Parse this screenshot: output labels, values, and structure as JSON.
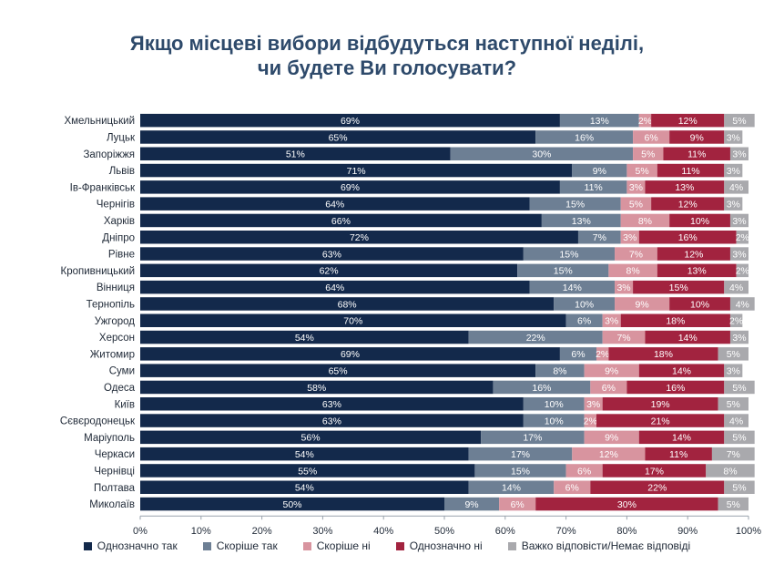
{
  "page": {
    "title_line1": "Якщо місцеві вибори відбудуться наступної неділі,",
    "title_line2": "чи будете Ви голосувати?"
  },
  "chart_data": {
    "type": "bar",
    "orientation": "horizontal",
    "stacked": true,
    "title": "Якщо місцеві вибори відбудуться наступної неділі, чи будете Ви голосувати?",
    "xlim": [
      0,
      100
    ],
    "x_ticks": [
      "0%",
      "10%",
      "20%",
      "30%",
      "40%",
      "50%",
      "60%",
      "70%",
      "80%",
      "90%",
      "100%"
    ],
    "legend_position": "bottom",
    "categories": [
      "Хмельницький",
      "Луцьк",
      "Запоріжжя",
      "Львів",
      "Ів-Франківськ",
      "Чернігів",
      "Харків",
      "Дніпро",
      "Рівне",
      "Кропивницький",
      "Вінниця",
      "Тернопіль",
      "Ужгород",
      "Херсон",
      "Житомир",
      "Суми",
      "Одеса",
      "Київ",
      "Сєвєродонецьк",
      "Маріуполь",
      "Черкаси",
      "Чернівці",
      "Полтава",
      "Миколаїв"
    ],
    "series": [
      {
        "name": "Однозначно так",
        "color": "#13294b",
        "values": [
          69,
          65,
          51,
          71,
          69,
          64,
          66,
          72,
          63,
          62,
          64,
          68,
          70,
          54,
          69,
          65,
          58,
          63,
          63,
          56,
          54,
          55,
          54,
          50
        ]
      },
      {
        "name": "Скоріше так",
        "color": "#6d7f94",
        "values": [
          13,
          16,
          30,
          9,
          11,
          15,
          13,
          7,
          15,
          15,
          14,
          10,
          6,
          22,
          6,
          8,
          16,
          10,
          10,
          17,
          17,
          15,
          14,
          9
        ]
      },
      {
        "name": "Скоріше ні",
        "color": "#d8949f",
        "values": [
          2,
          6,
          5,
          5,
          3,
          5,
          8,
          3,
          7,
          8,
          3,
          9,
          3,
          7,
          2,
          9,
          6,
          3,
          2,
          9,
          12,
          6,
          6,
          6
        ]
      },
      {
        "name": "Однозначно ні",
        "color": "#a2233f",
        "values": [
          12,
          9,
          11,
          11,
          13,
          12,
          10,
          16,
          12,
          13,
          15,
          10,
          18,
          14,
          18,
          14,
          16,
          19,
          21,
          14,
          11,
          17,
          22,
          30
        ]
      },
      {
        "name": "Важко відповісти/Немає відповіді",
        "color": "#a9a9ad",
        "values": [
          5,
          3,
          3,
          3,
          4,
          3,
          3,
          2,
          3,
          2,
          4,
          4,
          2,
          3,
          5,
          3,
          5,
          5,
          4,
          5,
          7,
          8,
          5,
          5
        ]
      }
    ]
  }
}
